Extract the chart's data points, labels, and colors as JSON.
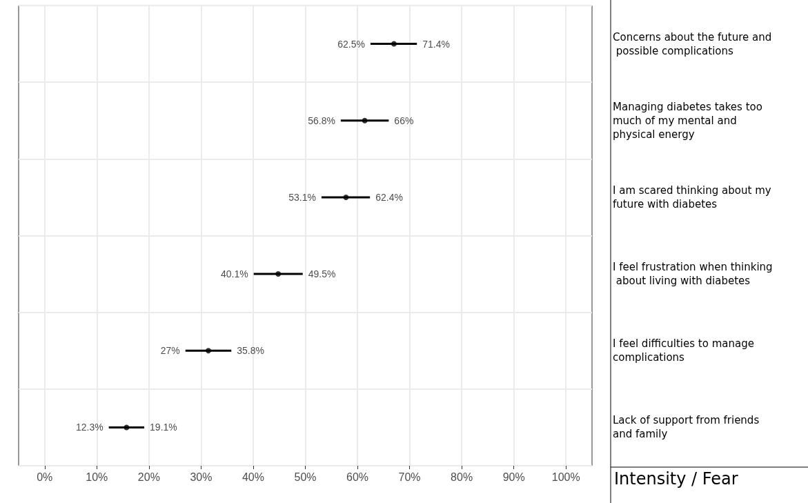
{
  "chart_data": {
    "type": "scatter",
    "orientation": "horizontal",
    "ylabel": "Intensity / Fear",
    "categories": [
      "Concerns about the future and possible complications",
      "Managing diabetes takes too much of my mental and physical energy",
      "I am scared thinking about my future with diabetes",
      "I feel frustration when thinking about living with diabetes",
      "I feel difficulties to manage complications",
      "Lack of support from friends and family"
    ],
    "values": [
      67,
      61.4,
      57.8,
      44.8,
      31.4,
      15.7
    ],
    "errors": [
      [
        62.5,
        71.4
      ],
      [
        56.8,
        66
      ],
      [
        53.1,
        62.4
      ],
      [
        40.1,
        49.5
      ],
      [
        27,
        35.8
      ],
      [
        12.3,
        19.1
      ]
    ],
    "color": "#000000",
    "marker": "circle",
    "grid": true,
    "xlim": [
      -5,
      105
    ],
    "xticks": [
      {
        "value": 0,
        "label": "0%"
      },
      {
        "value": 10,
        "label": "10%"
      },
      {
        "value": 20,
        "label": "20%"
      },
      {
        "value": 30,
        "label": "30%"
      },
      {
        "value": 40,
        "label": "40%"
      },
      {
        "value": 50,
        "label": "50%"
      },
      {
        "value": 60,
        "label": "60%"
      },
      {
        "value": 70,
        "label": "70%"
      },
      {
        "value": 80,
        "label": "80%"
      },
      {
        "value": 90,
        "label": "90%"
      },
      {
        "value": 100,
        "label": "100%"
      }
    ],
    "annotations": [
      "62.5%",
      "71.4%",
      "56.8%",
      "66%",
      "53.1%",
      "62.4%",
      "40.1%",
      "49.5%",
      "27%",
      "35.8%",
      "12.3%",
      "19.1%"
    ]
  }
}
